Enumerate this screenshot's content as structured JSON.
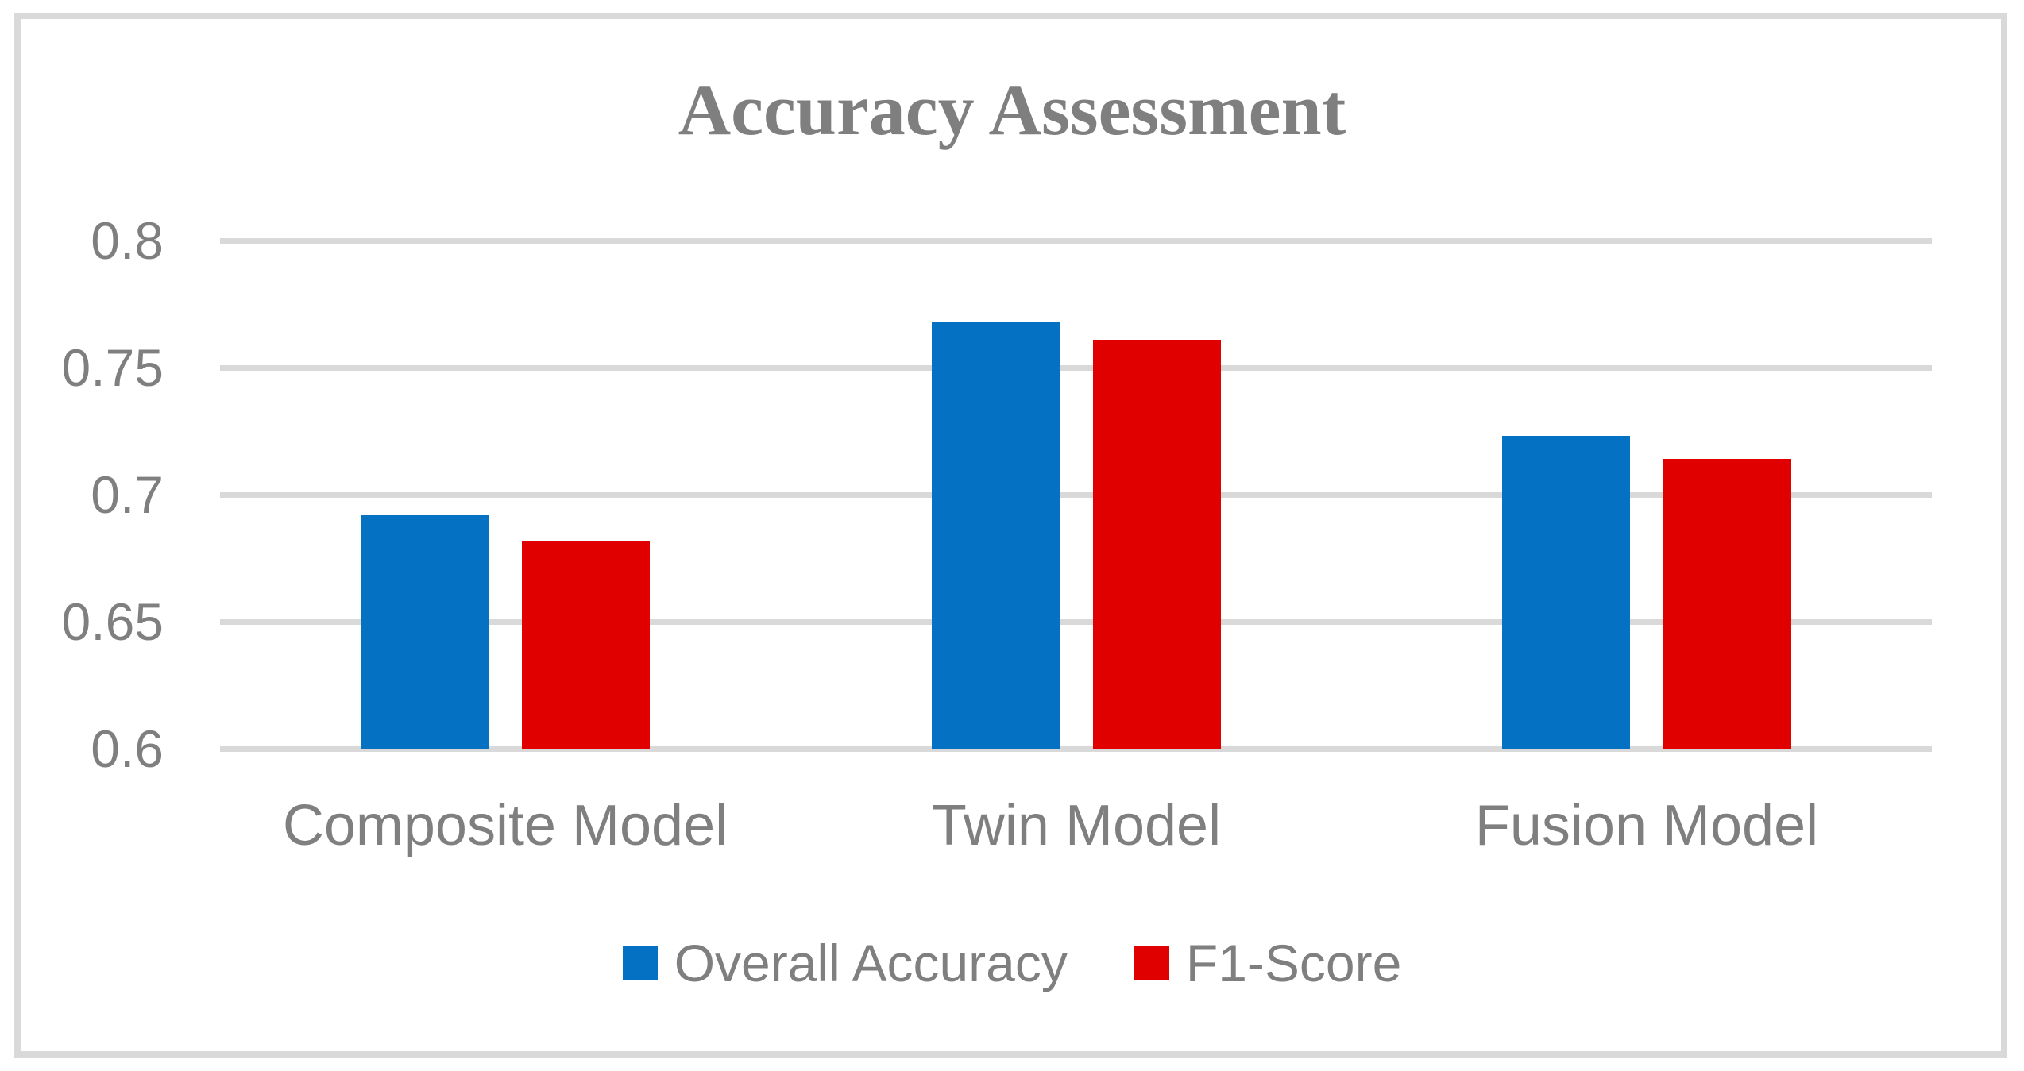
{
  "chart_data": {
    "type": "bar",
    "title": "Accuracy Assessment",
    "categories": [
      "Composite Model",
      "Twin Model",
      "Fusion Model"
    ],
    "series": [
      {
        "name": "Overall Accuracy",
        "color": "#0471C2",
        "values": [
          0.692,
          0.768,
          0.723
        ]
      },
      {
        "name": "F1-Score",
        "color": "#E00000",
        "values": [
          0.682,
          0.761,
          0.714
        ]
      }
    ],
    "xlabel": "",
    "ylabel": "",
    "ylim": [
      0.6,
      0.8
    ],
    "yticks": [
      0.8,
      0.75,
      0.7,
      0.65,
      0.6
    ],
    "ytick_labels": [
      "0.8",
      "0.75",
      "0.7",
      "0.65",
      "0.6"
    ],
    "grid": true,
    "legend_position": "bottom"
  },
  "colors": {
    "grid": "#D9D9D9",
    "frame_border": "#D9D9D9",
    "text": "#7F7F7F",
    "background": "#FFFFFF"
  }
}
